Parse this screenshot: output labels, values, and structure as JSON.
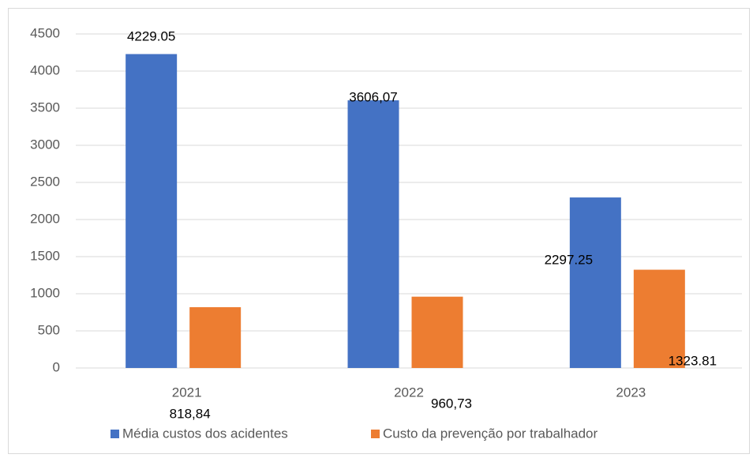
{
  "chart_data": {
    "type": "bar",
    "categories": [
      "2021",
      "2022",
      "2023"
    ],
    "series": [
      {
        "name": "Média custos dos acidentes",
        "color": "#4472c4",
        "values": [
          4229.05,
          3606.07,
          2297.25
        ],
        "value_labels": [
          "4229.05",
          "3606,07",
          "2297.25"
        ]
      },
      {
        "name": "Custo da prevenção por trabalhador",
        "color": "#ed7d31",
        "values": [
          818.84,
          960.73,
          1323.81
        ],
        "value_labels": [
          "818,84",
          "960,73",
          "1323.81"
        ]
      }
    ],
    "ylim": [
      0,
      4500
    ],
    "yticks": [
      0,
      500,
      1000,
      1500,
      2000,
      2500,
      3000,
      3500,
      4000,
      4500
    ],
    "grid": true,
    "legend": "bottom"
  }
}
